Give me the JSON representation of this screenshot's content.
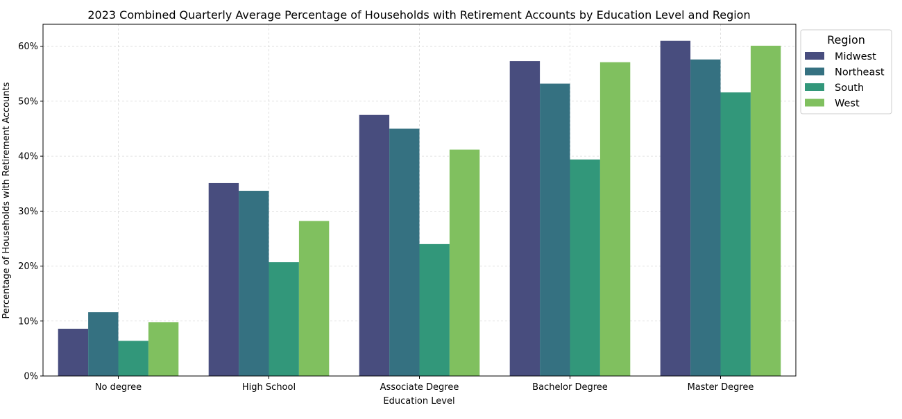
{
  "chart_data": {
    "type": "bar",
    "title": "2023 Combined Quarterly Average Percentage of Households with Retirement Accounts by Education Level and Region",
    "xlabel": "Education Level",
    "ylabel": "Percentage of Households with Retirement Accounts",
    "categories": [
      "No degree",
      "High School",
      "Associate Degree",
      "Bachelor Degree",
      "Master Degree"
    ],
    "ylim": [
      0,
      64
    ],
    "yticks": [
      0,
      10,
      20,
      30,
      40,
      50,
      60
    ],
    "ytick_suffix": "%",
    "grid": true,
    "legend": {
      "title": "Region",
      "placement": "outside-top-right"
    },
    "series": [
      {
        "name": "Midwest",
        "color": "#484d7e",
        "values": [
          8.6,
          35.1,
          47.5,
          57.3,
          61.0
        ]
      },
      {
        "name": "Northeast",
        "color": "#357181",
        "values": [
          11.6,
          33.7,
          45.0,
          53.2,
          57.6
        ]
      },
      {
        "name": "South",
        "color": "#32977a",
        "values": [
          6.4,
          20.7,
          24.0,
          39.4,
          51.6
        ]
      },
      {
        "name": "West",
        "color": "#80c05f",
        "values": [
          9.8,
          28.2,
          41.2,
          57.1,
          60.1
        ]
      }
    ]
  }
}
